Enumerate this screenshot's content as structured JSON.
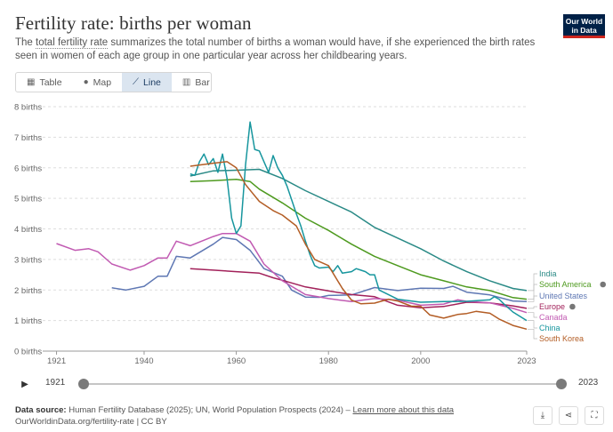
{
  "header": {
    "title": "Fertility rate: births per woman",
    "subtitle_prefix": "The ",
    "subtitle_term": "total fertility rate",
    "subtitle_rest": " summarizes the total number of births a woman would have, if she experienced the birth rates seen in women of each age group in one particular year across her childbearing years."
  },
  "logo": {
    "line1": "Our World",
    "line2": "in Data",
    "bg": "#002147",
    "accent": "#ce261e"
  },
  "tabs": [
    {
      "label": "Table",
      "icon": "table-icon",
      "glyph": "▦",
      "active": false
    },
    {
      "label": "Map",
      "icon": "globe-icon",
      "glyph": "●",
      "active": false
    },
    {
      "label": "Line",
      "icon": "line-chart-icon",
      "glyph": "⟋",
      "active": true
    },
    {
      "label": "Bar",
      "icon": "bar-chart-icon",
      "glyph": "▥",
      "active": false
    }
  ],
  "chart_data": {
    "type": "line",
    "title": "Fertility rate: births per woman",
    "xlabel": "",
    "ylabel": "",
    "xlim": [
      1918,
      2023
    ],
    "ylim": [
      0,
      8
    ],
    "grid": "horizontal-dashed",
    "legend_placement": "right",
    "y_ticks": [
      {
        "value": 0,
        "label": "0 births"
      },
      {
        "value": 1,
        "label": "1 births"
      },
      {
        "value": 2,
        "label": "2 births"
      },
      {
        "value": 3,
        "label": "3 births"
      },
      {
        "value": 4,
        "label": "4 births"
      },
      {
        "value": 5,
        "label": "5 births"
      },
      {
        "value": 6,
        "label": "6 births"
      },
      {
        "value": 7,
        "label": "7 births"
      },
      {
        "value": 8,
        "label": "8 births"
      }
    ],
    "x_ticks": [
      {
        "value": 1921,
        "label": "1921"
      },
      {
        "value": 1940,
        "label": "1940"
      },
      {
        "value": 1960,
        "label": "1960"
      },
      {
        "value": 1980,
        "label": "1980"
      },
      {
        "value": 2000,
        "label": "2000"
      },
      {
        "value": 2023,
        "label": "2023"
      }
    ],
    "series": [
      {
        "name": "India",
        "color": "#2a8a86",
        "info": false,
        "points": [
          [
            1950,
            5.73
          ],
          [
            1955,
            5.9
          ],
          [
            1960,
            5.92
          ],
          [
            1965,
            5.95
          ],
          [
            1970,
            5.65
          ],
          [
            1975,
            5.25
          ],
          [
            1980,
            4.9
          ],
          [
            1985,
            4.55
          ],
          [
            1990,
            4.05
          ],
          [
            1995,
            3.7
          ],
          [
            2000,
            3.35
          ],
          [
            2005,
            2.95
          ],
          [
            2010,
            2.6
          ],
          [
            2015,
            2.3
          ],
          [
            2020,
            2.05
          ],
          [
            2023,
            1.98
          ]
        ]
      },
      {
        "name": "South America",
        "color": "#4e9a1f",
        "info": true,
        "points": [
          [
            1950,
            5.55
          ],
          [
            1955,
            5.58
          ],
          [
            1960,
            5.62
          ],
          [
            1963,
            5.55
          ],
          [
            1965,
            5.3
          ],
          [
            1970,
            4.85
          ],
          [
            1975,
            4.35
          ],
          [
            1980,
            3.95
          ],
          [
            1985,
            3.5
          ],
          [
            1990,
            3.1
          ],
          [
            1995,
            2.8
          ],
          [
            2000,
            2.5
          ],
          [
            2005,
            2.3
          ],
          [
            2010,
            2.1
          ],
          [
            2015,
            1.98
          ],
          [
            2020,
            1.75
          ],
          [
            2023,
            1.7
          ]
        ]
      },
      {
        "name": "United States",
        "color": "#5e77b3",
        "info": false,
        "points": [
          [
            1933,
            2.07
          ],
          [
            1936,
            2.0
          ],
          [
            1940,
            2.12
          ],
          [
            1943,
            2.45
          ],
          [
            1945,
            2.45
          ],
          [
            1947,
            3.1
          ],
          [
            1950,
            3.05
          ],
          [
            1955,
            3.5
          ],
          [
            1957,
            3.72
          ],
          [
            1960,
            3.65
          ],
          [
            1963,
            3.3
          ],
          [
            1966,
            2.7
          ],
          [
            1970,
            2.45
          ],
          [
            1972,
            2.0
          ],
          [
            1975,
            1.77
          ],
          [
            1978,
            1.76
          ],
          [
            1980,
            1.82
          ],
          [
            1985,
            1.84
          ],
          [
            1990,
            2.08
          ],
          [
            1995,
            1.98
          ],
          [
            2000,
            2.06
          ],
          [
            2005,
            2.05
          ],
          [
            2007,
            2.12
          ],
          [
            2010,
            1.93
          ],
          [
            2015,
            1.84
          ],
          [
            2020,
            1.64
          ],
          [
            2023,
            1.62
          ]
        ]
      },
      {
        "name": "Europe",
        "color": "#a2215a",
        "info": true,
        "points": [
          [
            1950,
            2.7
          ],
          [
            1955,
            2.65
          ],
          [
            1960,
            2.6
          ],
          [
            1965,
            2.55
          ],
          [
            1968,
            2.4
          ],
          [
            1970,
            2.32
          ],
          [
            1975,
            2.1
          ],
          [
            1980,
            1.97
          ],
          [
            1985,
            1.85
          ],
          [
            1990,
            1.78
          ],
          [
            1995,
            1.5
          ],
          [
            2000,
            1.42
          ],
          [
            2005,
            1.46
          ],
          [
            2010,
            1.6
          ],
          [
            2015,
            1.58
          ],
          [
            2020,
            1.48
          ],
          [
            2023,
            1.4
          ]
        ]
      },
      {
        "name": "Canada",
        "color": "#c15ab2",
        "info": false,
        "points": [
          [
            1921,
            3.52
          ],
          [
            1925,
            3.3
          ],
          [
            1928,
            3.35
          ],
          [
            1930,
            3.25
          ],
          [
            1933,
            2.85
          ],
          [
            1937,
            2.65
          ],
          [
            1940,
            2.8
          ],
          [
            1943,
            3.05
          ],
          [
            1945,
            3.05
          ],
          [
            1947,
            3.6
          ],
          [
            1950,
            3.45
          ],
          [
            1955,
            3.75
          ],
          [
            1957,
            3.85
          ],
          [
            1960,
            3.85
          ],
          [
            1963,
            3.6
          ],
          [
            1966,
            2.85
          ],
          [
            1970,
            2.3
          ],
          [
            1975,
            1.85
          ],
          [
            1980,
            1.72
          ],
          [
            1985,
            1.62
          ],
          [
            1990,
            1.72
          ],
          [
            1995,
            1.67
          ],
          [
            2000,
            1.5
          ],
          [
            2005,
            1.54
          ],
          [
            2008,
            1.68
          ],
          [
            2010,
            1.63
          ],
          [
            2015,
            1.58
          ],
          [
            2020,
            1.4
          ],
          [
            2023,
            1.26
          ]
        ]
      },
      {
        "name": "China",
        "color": "#17969e",
        "info": false,
        "points": [
          [
            1950,
            5.8
          ],
          [
            1951,
            5.75
          ],
          [
            1952,
            6.2
          ],
          [
            1953,
            6.45
          ],
          [
            1954,
            6.1
          ],
          [
            1955,
            6.3
          ],
          [
            1956,
            5.85
          ],
          [
            1957,
            6.45
          ],
          [
            1958,
            5.65
          ],
          [
            1959,
            4.35
          ],
          [
            1960,
            3.85
          ],
          [
            1961,
            4.1
          ],
          [
            1962,
            6.1
          ],
          [
            1963,
            7.5
          ],
          [
            1964,
            6.6
          ],
          [
            1965,
            6.55
          ],
          [
            1966,
            6.2
          ],
          [
            1967,
            5.85
          ],
          [
            1968,
            6.4
          ],
          [
            1969,
            6.0
          ],
          [
            1970,
            5.75
          ],
          [
            1971,
            5.4
          ],
          [
            1972,
            4.95
          ],
          [
            1973,
            4.5
          ],
          [
            1974,
            4.1
          ],
          [
            1975,
            3.6
          ],
          [
            1976,
            3.15
          ],
          [
            1977,
            2.8
          ],
          [
            1978,
            2.72
          ],
          [
            1980,
            2.75
          ],
          [
            1981,
            2.6
          ],
          [
            1982,
            2.8
          ],
          [
            1983,
            2.55
          ],
          [
            1985,
            2.6
          ],
          [
            1986,
            2.7
          ],
          [
            1987,
            2.65
          ],
          [
            1988,
            2.6
          ],
          [
            1989,
            2.5
          ],
          [
            1990,
            2.5
          ],
          [
            1991,
            2.0
          ],
          [
            1993,
            1.85
          ],
          [
            1995,
            1.7
          ],
          [
            2000,
            1.6
          ],
          [
            2005,
            1.62
          ],
          [
            2010,
            1.63
          ],
          [
            2015,
            1.68
          ],
          [
            2016,
            1.78
          ],
          [
            2017,
            1.7
          ],
          [
            2018,
            1.55
          ],
          [
            2020,
            1.28
          ],
          [
            2023,
            1.0
          ]
        ]
      },
      {
        "name": "South Korea",
        "color": "#b35d25",
        "info": false,
        "points": [
          [
            1950,
            6.05
          ],
          [
            1955,
            6.15
          ],
          [
            1958,
            6.2
          ],
          [
            1960,
            6.0
          ],
          [
            1962,
            5.45
          ],
          [
            1965,
            4.9
          ],
          [
            1968,
            4.6
          ],
          [
            1970,
            4.45
          ],
          [
            1973,
            4.1
          ],
          [
            1975,
            3.5
          ],
          [
            1977,
            3.0
          ],
          [
            1980,
            2.8
          ],
          [
            1983,
            2.05
          ],
          [
            1985,
            1.67
          ],
          [
            1987,
            1.55
          ],
          [
            1990,
            1.57
          ],
          [
            1993,
            1.7
          ],
          [
            1995,
            1.64
          ],
          [
            1998,
            1.47
          ],
          [
            2000,
            1.47
          ],
          [
            2002,
            1.18
          ],
          [
            2005,
            1.08
          ],
          [
            2008,
            1.2
          ],
          [
            2010,
            1.23
          ],
          [
            2012,
            1.3
          ],
          [
            2015,
            1.24
          ],
          [
            2017,
            1.05
          ],
          [
            2020,
            0.84
          ],
          [
            2023,
            0.72
          ]
        ]
      }
    ],
    "legend_order": [
      "India",
      "South America",
      "United States",
      "Europe",
      "Canada",
      "China",
      "South Korea"
    ]
  },
  "timeline": {
    "start": "1921",
    "end": "2023",
    "play_icon": "play-icon"
  },
  "footer": {
    "source_label": "Data source:",
    "source_text": " Human Fertility Database (2025); UN, World Population Prospects (2024) – ",
    "learn_more": "Learn more about this data",
    "url_line": "OurWorldinData.org/fertility-rate | CC BY"
  },
  "actions": {
    "download_icon": "download-icon",
    "share_icon": "share-icon",
    "fullscreen_icon": "fullscreen-icon"
  }
}
